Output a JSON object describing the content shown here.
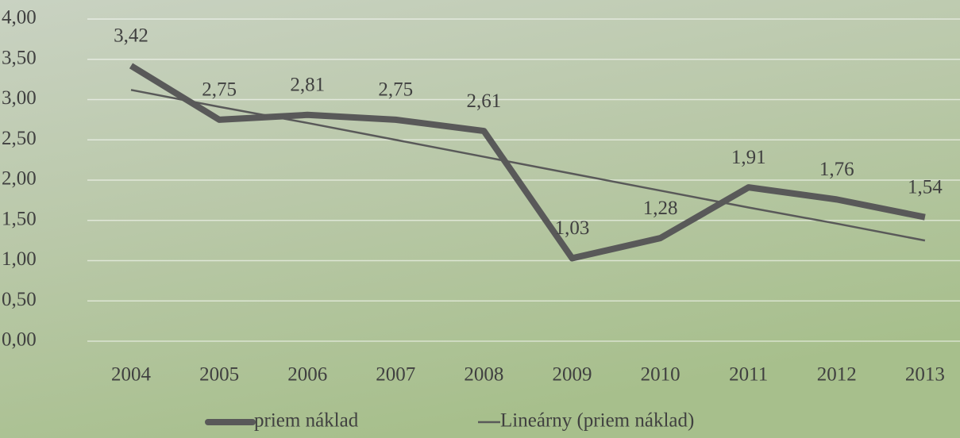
{
  "chart_data": {
    "type": "line",
    "categories": [
      "2004",
      "2005",
      "2006",
      "2007",
      "2008",
      "2009",
      "2010",
      "2011",
      "2012",
      "2013"
    ],
    "series": [
      {
        "name": "priem náklad",
        "color": "#595959",
        "values": [
          3.42,
          2.75,
          2.81,
          2.75,
          2.61,
          1.03,
          1.28,
          1.91,
          1.76,
          1.54
        ],
        "value_labels": [
          "3,42",
          "2,75",
          "2,81",
          "2,75",
          "2,61",
          "1,03",
          "1,28",
          "1,91",
          "1,76",
          "1,54"
        ]
      },
      {
        "name": "Lineárny (priem náklad)",
        "color": "#595959",
        "values": [
          3.12,
          2.91,
          2.71,
          2.5,
          2.29,
          2.08,
          1.87,
          1.66,
          1.46,
          1.25
        ]
      }
    ],
    "ylim": [
      0,
      4
    ],
    "yticks": [
      {
        "value": 0,
        "label": "0,00"
      },
      {
        "value": 0.5,
        "label": "0,50"
      },
      {
        "value": 1,
        "label": "1,00"
      },
      {
        "value": 1.5,
        "label": "1,50"
      },
      {
        "value": 2,
        "label": "2,00"
      },
      {
        "value": 2.5,
        "label": "2,50"
      },
      {
        "value": 3,
        "label": "3,00"
      },
      {
        "value": 3.5,
        "label": "3,50"
      },
      {
        "value": 4,
        "label": "4,00"
      }
    ],
    "grid": true,
    "legend": "bottom"
  }
}
